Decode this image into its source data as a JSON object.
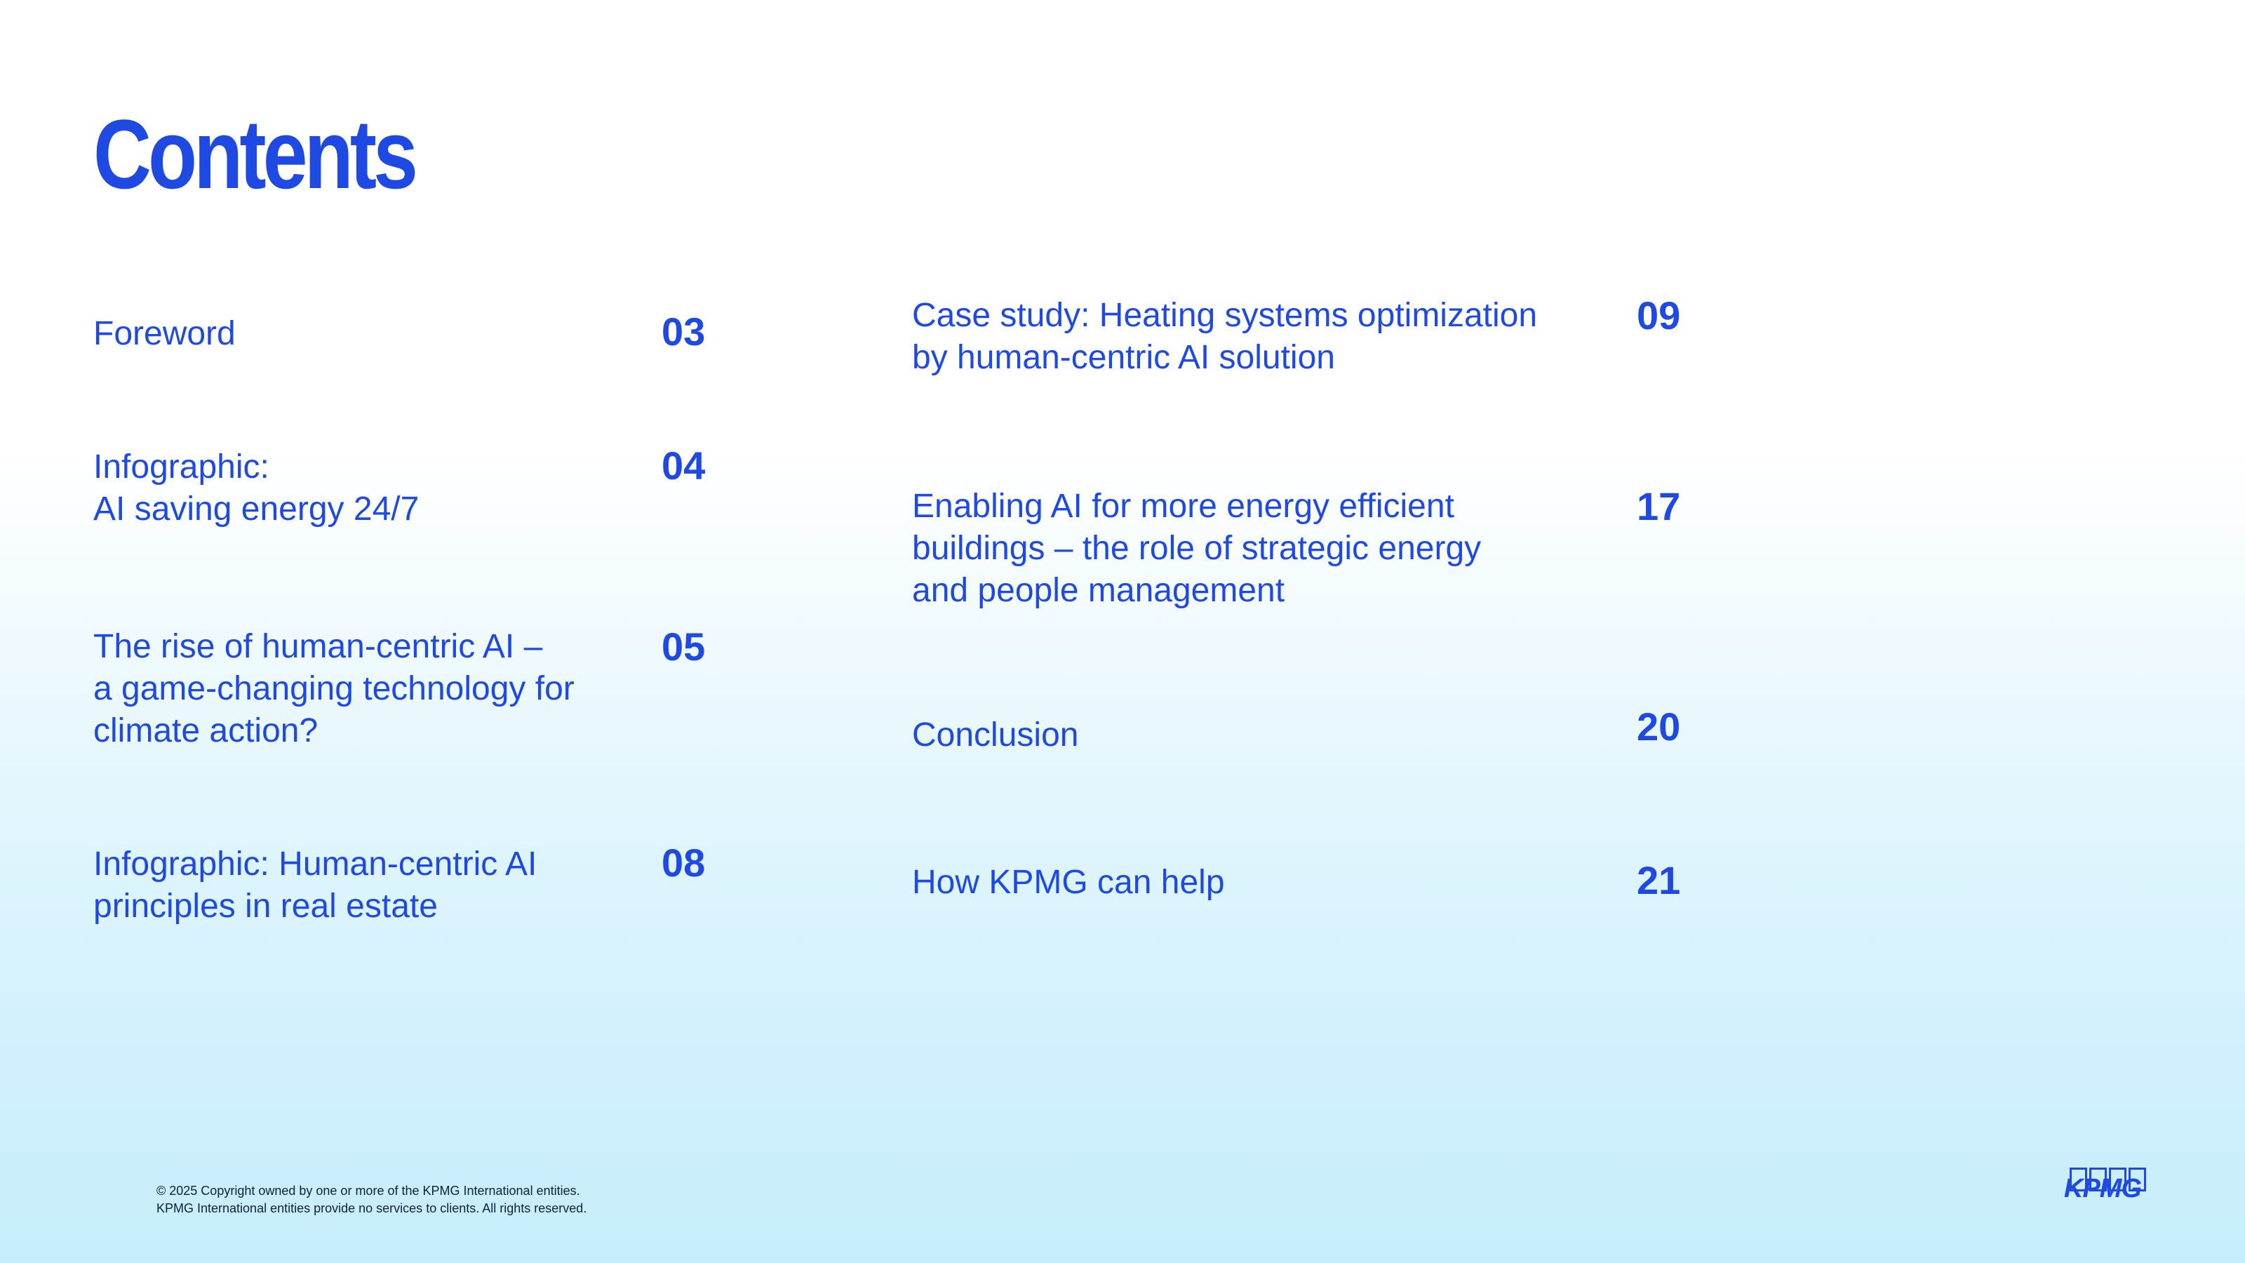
{
  "page": {
    "title": "Contents"
  },
  "toc": {
    "left": [
      {
        "label": "Foreword",
        "page": "03"
      },
      {
        "label": "Infographic:\nAI saving energy 24/7",
        "page": "04"
      },
      {
        "label": "The rise of human-centric AI –\na game-changing technology for\nclimate action?",
        "page": "05"
      },
      {
        "label": "Infographic: Human-centric AI\nprinciples in real estate",
        "page": "08"
      }
    ],
    "right": [
      {
        "label": "Case study: Heating systems optimization\nby human-centric AI solution",
        "page": "09"
      },
      {
        "label": "Enabling AI for more energy efficient\nbuildings – the role of strategic energy\nand people management",
        "page": "17"
      },
      {
        "label": "Conclusion",
        "page": "20"
      },
      {
        "label": "How KPMG can help",
        "page": "21"
      }
    ]
  },
  "footer": {
    "copyright": "© 2025 Copyright owned by one or more of the KPMG International entities.\nKPMG International entities provide no services to clients.  All rights reserved.",
    "logo_text": "KPMG"
  },
  "colors": {
    "accent": "#1e49e2",
    "footer_text": "#0c233c",
    "background_top": "#ffffff",
    "background_bottom": "#c7edfc"
  }
}
